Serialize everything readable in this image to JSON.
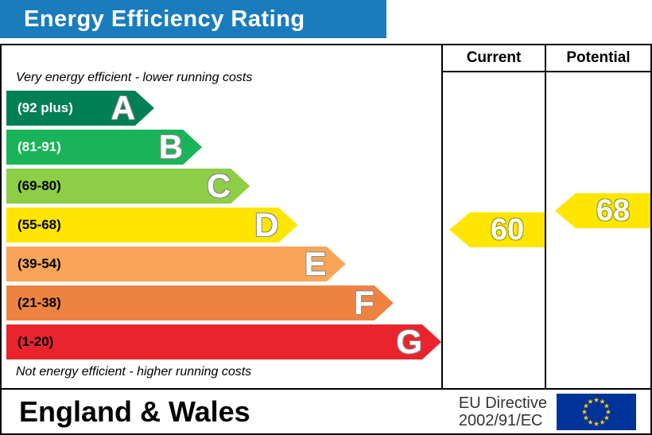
{
  "header": {
    "title": "Energy Efficiency Rating",
    "bg": "#1a7cbd"
  },
  "columns": {
    "current": "Current",
    "potential": "Potential"
  },
  "chart_data": {
    "type": "bar",
    "title": "Energy Efficiency Rating",
    "top_note": "Very energy efficient - lower running costs",
    "bottom_note": "Not energy efficient - higher running costs",
    "bands": [
      {
        "letter": "A",
        "range": "(92 plus)",
        "min": 92,
        "max": 100,
        "color": "#008054",
        "range_text_color": "#ffffff",
        "width_pct": 34
      },
      {
        "letter": "B",
        "range": "(81-91)",
        "min": 81,
        "max": 91,
        "color": "#19b459",
        "range_text_color": "#ffffff",
        "width_pct": 45
      },
      {
        "letter": "C",
        "range": "(69-80)",
        "min": 69,
        "max": 80,
        "color": "#8dce46",
        "range_text_color": "#000000",
        "width_pct": 56
      },
      {
        "letter": "D",
        "range": "(55-68)",
        "min": 55,
        "max": 68,
        "color": "#ffe600",
        "range_text_color": "#000000",
        "width_pct": 67
      },
      {
        "letter": "E",
        "range": "(39-54)",
        "min": 39,
        "max": 54,
        "color": "#f9a557",
        "range_text_color": "#000000",
        "width_pct": 78
      },
      {
        "letter": "F",
        "range": "(21-38)",
        "min": 21,
        "max": 38,
        "color": "#ee8341",
        "range_text_color": "#000000",
        "width_pct": 89
      },
      {
        "letter": "G",
        "range": "(1-20)",
        "min": 1,
        "max": 20,
        "color": "#e9242c",
        "range_text_color": "#000000",
        "width_pct": 100
      }
    ],
    "current": {
      "value": 60,
      "band": "D"
    },
    "potential": {
      "value": 68,
      "band": "D"
    },
    "arrow_color": "#ffe600"
  },
  "footer": {
    "region": "England & Wales",
    "directive_line1": "EU Directive",
    "directive_line2": "2002/91/EC",
    "flag": {
      "name": "eu-flag",
      "bg": "#003399",
      "star_color": "#ffcc00"
    }
  }
}
